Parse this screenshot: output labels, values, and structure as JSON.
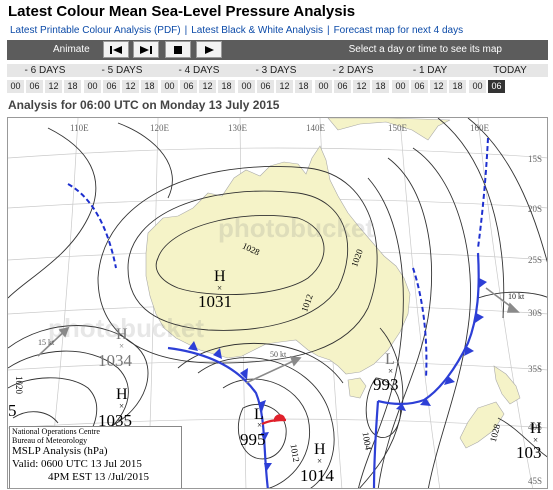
{
  "page_title": "Latest Colour Mean Sea-Level Pressure Analysis",
  "links": [
    {
      "label": "Latest Printable Colour Analysis (PDF)"
    },
    {
      "label": "Latest Black & White Analysis"
    },
    {
      "label": "Forecast map for next 4 days"
    }
  ],
  "toolbar": {
    "animate_label": "Animate",
    "hint": "Select a day or time to see its map",
    "buttons": [
      {
        "glyph": "|◀"
      },
      {
        "glyph": "▶|"
      },
      {
        "glyph": "■"
      },
      {
        "glyph": "▶"
      }
    ]
  },
  "days": [
    "- 6 DAYS",
    "- 5 DAYS",
    "- 4 DAYS",
    "- 3 DAYS",
    "- 2 DAYS",
    "- 1 DAY",
    "TODAY"
  ],
  "hours": [
    "00",
    "06",
    "12",
    "18",
    "00",
    "06",
    "12",
    "18",
    "00",
    "06",
    "12",
    "18",
    "00",
    "06",
    "12",
    "18",
    "00",
    "06",
    "12",
    "18",
    "00",
    "06",
    "12",
    "18",
    "00",
    "06"
  ],
  "selected_hour_index": 25,
  "analysis_heading": "Analysis for 06:00 UTC on Monday 13 July 2015",
  "map": {
    "longitudes": [
      "110E",
      "120E",
      "130E",
      "140E",
      "150E",
      "160E"
    ],
    "latitudes": [
      "15S",
      "20S",
      "25S",
      "30S",
      "35S",
      "40S",
      "45S"
    ],
    "isobar_labels": [
      "1028",
      "1020",
      "1012",
      "1020",
      "1012",
      "1004",
      "1028"
    ],
    "pressure_systems": [
      {
        "type": "H",
        "value": "1031"
      },
      {
        "type": "H",
        "value": "1034"
      },
      {
        "type": "H",
        "value": "1035"
      },
      {
        "type": "L",
        "value": "993"
      },
      {
        "type": "L",
        "value": "995"
      },
      {
        "type": "H",
        "value": "1014"
      },
      {
        "type": "H",
        "value": "103"
      }
    ],
    "edge_value": "5",
    "wind_labels": [
      "15 kt",
      "50 kt",
      "10 kt"
    ],
    "watermark": "photobucket",
    "legend": {
      "org1": "National Operations Centre",
      "org2": "Bureau of Meteorology",
      "product": "MSLP Analysis (hPa)",
      "valid": "Valid: 0600 UTC 13 Jul 2015",
      "local": "4PM EST 13 /Jul/2015"
    },
    "colors": {
      "land": "#f5f3c8",
      "isobar": "#333333",
      "cold_front": "#2d3fd6",
      "warm_front": "#e0212b",
      "trough": "#1d2fcf",
      "wind_arrow": "#8a8a8a"
    }
  }
}
